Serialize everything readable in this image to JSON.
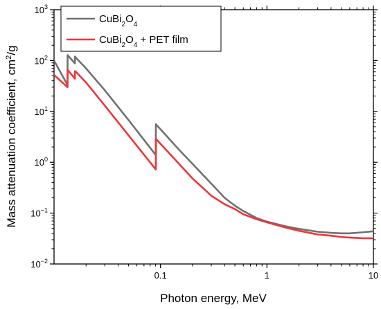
{
  "chart_data": {
    "type": "line",
    "xlabel": "Photon energy, MeV",
    "ylabel_main": "Mass attenuation coefficient, cm",
    "ylabel_sup": "2",
    "ylabel_tail": "/g",
    "x_scale": "log",
    "y_scale": "log",
    "xlim": [
      0.01,
      10
    ],
    "ylim": [
      0.01,
      1000
    ],
    "grid": false,
    "legend_position": "top-left",
    "x_ticks": [
      {
        "value": 0.1,
        "label": "0.1"
      },
      {
        "value": 1,
        "label": "1"
      },
      {
        "value": 10,
        "label": "10"
      }
    ],
    "y_ticks": [
      {
        "value": 0.01,
        "base": "10",
        "exp": "−2"
      },
      {
        "value": 0.1,
        "base": "10",
        "exp": "−1"
      },
      {
        "value": 1,
        "base": "10",
        "exp": "0"
      },
      {
        "value": 10,
        "base": "10",
        "exp": "1"
      },
      {
        "value": 100,
        "base": "10",
        "exp": "2"
      },
      {
        "value": 1000,
        "base": "10",
        "exp": "3"
      }
    ],
    "series": [
      {
        "name_parts": [
          {
            "t": "CuBi"
          },
          {
            "t": "2",
            "sub": true
          },
          {
            "t": "O"
          },
          {
            "t": "4",
            "sub": true
          }
        ],
        "color": "#707070",
        "points": [
          [
            0.01,
            100
          ],
          [
            0.0134,
            33
          ],
          [
            0.01341,
            128
          ],
          [
            0.0157,
            88
          ],
          [
            0.01571,
            120
          ],
          [
            0.0163,
            110
          ],
          [
            0.02,
            70
          ],
          [
            0.03,
            26
          ],
          [
            0.05,
            6.8
          ],
          [
            0.0905,
            1.38
          ],
          [
            0.09051,
            5.6
          ],
          [
            0.15,
            1.75
          ],
          [
            0.2,
            0.93
          ],
          [
            0.3,
            0.38
          ],
          [
            0.4,
            0.2
          ],
          [
            0.5,
            0.14
          ],
          [
            0.6,
            0.11
          ],
          [
            0.8,
            0.08
          ],
          [
            1,
            0.068
          ],
          [
            1.5,
            0.055
          ],
          [
            2,
            0.049
          ],
          [
            3,
            0.043
          ],
          [
            4,
            0.041
          ],
          [
            5,
            0.04
          ],
          [
            6,
            0.04
          ],
          [
            8,
            0.042
          ],
          [
            10,
            0.044
          ]
        ]
      },
      {
        "name_parts": [
          {
            "t": "CuBi"
          },
          {
            "t": "2",
            "sub": true
          },
          {
            "t": "O"
          },
          {
            "t": "4",
            "sub": true
          },
          {
            "t": " + PET film"
          }
        ],
        "color": "#ee3538",
        "points": [
          [
            0.01,
            52
          ],
          [
            0.0134,
            30
          ],
          [
            0.01341,
            66
          ],
          [
            0.0157,
            44
          ],
          [
            0.01571,
            62
          ],
          [
            0.0163,
            58
          ],
          [
            0.02,
            37
          ],
          [
            0.03,
            13
          ],
          [
            0.05,
            3.4
          ],
          [
            0.0905,
            0.72
          ],
          [
            0.09051,
            2.9
          ],
          [
            0.15,
            0.92
          ],
          [
            0.2,
            0.48
          ],
          [
            0.3,
            0.22
          ],
          [
            0.4,
            0.15
          ],
          [
            0.5,
            0.12
          ],
          [
            0.6,
            0.095
          ],
          [
            0.8,
            0.076
          ],
          [
            1,
            0.066
          ],
          [
            1.5,
            0.052
          ],
          [
            2,
            0.045
          ],
          [
            3,
            0.038
          ],
          [
            4,
            0.036
          ],
          [
            5,
            0.034
          ],
          [
            6,
            0.033
          ],
          [
            8,
            0.032
          ],
          [
            10,
            0.032
          ]
        ]
      }
    ]
  }
}
